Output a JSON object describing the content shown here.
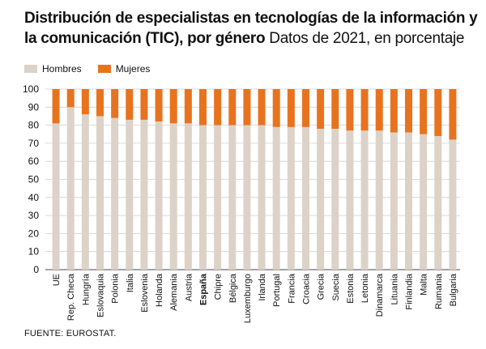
{
  "title_bold": "Distribución de especialistas en tecnologías de la información y la comunicación (TIC), por género",
  "title_sub": "Datos de 2021, en porcentaje",
  "legend": {
    "hombres": "Hombres",
    "mujeres": "Mujeres"
  },
  "source": "FUENTE: EUROSTAT.",
  "colors": {
    "hombres": "#ddd2c8",
    "mujeres": "#e8731f"
  },
  "chart_data": {
    "type": "bar",
    "stacked": true,
    "categories": [
      "UE",
      "Rep. Checa",
      "Hungría",
      "Eslovaquia",
      "Polonia",
      "Italia",
      "Eslovenia",
      "Holanda",
      "Alemania",
      "Austria",
      "España",
      "Chipre",
      "Bélgica",
      "Luxemburgo",
      "Irlanda",
      "Portugal",
      "Francia",
      "Croacia",
      "Grecia",
      "Suecia",
      "Estonia",
      "Letonia",
      "Dinamarca",
      "Lituania",
      "Finlandia",
      "Malta",
      "Rumania",
      "Bulgaria"
    ],
    "highlight": "España",
    "series": [
      {
        "name": "Hombres",
        "values": [
          81,
          90,
          86,
          85,
          84,
          83,
          83,
          82,
          81,
          81,
          80,
          80,
          80,
          80,
          80,
          79,
          79,
          79,
          78,
          78,
          77,
          77,
          77,
          76,
          76,
          75,
          74,
          72
        ]
      },
      {
        "name": "Mujeres",
        "values": [
          19,
          10,
          14,
          15,
          16,
          17,
          17,
          18,
          19,
          19,
          20,
          20,
          20,
          20,
          20,
          21,
          21,
          21,
          22,
          22,
          23,
          23,
          23,
          24,
          24,
          25,
          26,
          28
        ]
      }
    ],
    "ylim": [
      0,
      100
    ],
    "yticks": [
      0,
      10,
      20,
      30,
      40,
      50,
      60,
      70,
      80,
      90,
      100
    ],
    "grid": true
  }
}
